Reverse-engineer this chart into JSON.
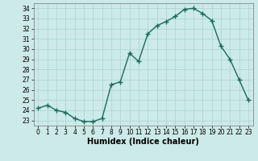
{
  "x": [
    0,
    1,
    2,
    3,
    4,
    5,
    6,
    7,
    8,
    9,
    10,
    11,
    12,
    13,
    14,
    15,
    16,
    17,
    18,
    19,
    20,
    21,
    22,
    23
  ],
  "y": [
    24.2,
    24.5,
    24.0,
    23.8,
    23.2,
    22.9,
    22.9,
    23.2,
    26.5,
    26.8,
    29.6,
    28.8,
    31.5,
    32.3,
    32.7,
    33.2,
    33.9,
    34.0,
    33.5,
    32.8,
    30.3,
    29.0,
    27.0,
    25.0
  ],
  "line_color": "#1a6b5a",
  "marker": "+",
  "marker_size": 4,
  "xlabel": "Humidex (Indice chaleur)",
  "xlim": [
    -0.5,
    23.5
  ],
  "ylim": [
    22.5,
    34.5
  ],
  "yticks": [
    23,
    24,
    25,
    26,
    27,
    28,
    29,
    30,
    31,
    32,
    33,
    34
  ],
  "xticks": [
    0,
    1,
    2,
    3,
    4,
    5,
    6,
    7,
    8,
    9,
    10,
    11,
    12,
    13,
    14,
    15,
    16,
    17,
    18,
    19,
    20,
    21,
    22,
    23
  ],
  "background_color": "#cceae7",
  "grid_color": "#aad4d0",
  "tick_fontsize": 5.5,
  "xlabel_fontsize": 7,
  "linewidth": 1.0
}
